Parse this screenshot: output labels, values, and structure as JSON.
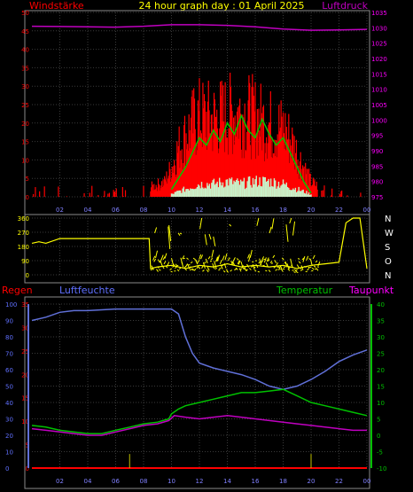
{
  "header": {
    "left_label": "Windstärke",
    "center_title": "24 hour graph day : 01 April 2025",
    "right_label": "Luftdruck"
  },
  "colors": {
    "bg": "#000000",
    "panel_border": "#8a8a8a",
    "grid": "#3a3a3a",
    "wind_gust": "#ff0000",
    "wind_avg": "#00c800",
    "wind_min": "#c8f0c8",
    "pressure": "#c000c0",
    "direction": "#ffff00",
    "humidity": "#6070d8",
    "temperature": "#00c000",
    "dewpoint": "#c000c0",
    "rain": "#ff0000",
    "wind_axis": "#ff0000",
    "pressure_axis": "#ff00ff",
    "humidity_axis": "#6070ff",
    "temp_axis": "#00c000",
    "rain_axis": "#ff0000",
    "time_axis": "#8080ff",
    "white": "#ffffff"
  },
  "time_ticks": [
    "02",
    "04",
    "06",
    "08",
    "10",
    "12",
    "14",
    "16",
    "18",
    "20",
    "22",
    "00"
  ],
  "chart_data": [
    {
      "type": "line",
      "name": "wind_and_pressure",
      "x_range": [
        0,
        24
      ],
      "wind_axis": {
        "ticks": [
          "0",
          "5",
          "10",
          "15",
          "20",
          "25",
          "30",
          "35",
          "40",
          "45",
          "50"
        ],
        "ylim": [
          0,
          50
        ]
      },
      "pressure_axis": {
        "ticks": [
          "975",
          "980",
          "985",
          "990",
          "995",
          "1000",
          "1005",
          "1010",
          "1015",
          "1020",
          "1025",
          "1030",
          "1035"
        ],
        "ylim": [
          975,
          1035
        ]
      },
      "pressure": {
        "x": [
          0,
          2,
          4,
          6,
          8,
          10,
          12,
          14,
          16,
          18,
          20,
          22,
          24
        ],
        "y": [
          1030.5,
          1030.4,
          1030.3,
          1030.2,
          1030.5,
          1031.0,
          1031.0,
          1030.8,
          1030.3,
          1029.6,
          1029.2,
          1029.3,
          1029.5
        ]
      },
      "wind_avg": {
        "x": [
          10,
          10.5,
          11,
          11.5,
          12,
          12.5,
          13,
          13.5,
          14,
          14.5,
          15,
          15.5,
          16,
          16.5,
          17,
          17.5,
          18,
          18.5,
          19,
          19.5,
          20
        ],
        "y": [
          2,
          5,
          8,
          12,
          16,
          14,
          18,
          15,
          20,
          17,
          22,
          18,
          16,
          21,
          17,
          14,
          16,
          12,
          8,
          4,
          1
        ]
      },
      "wind_gust_envelope": {
        "x": [
          0,
          8,
          9.5,
          10,
          10.5,
          11,
          11.5,
          12,
          13,
          14,
          15,
          16,
          17,
          18,
          18.5,
          19,
          19.5,
          20,
          21,
          22,
          23,
          24
        ],
        "y": [
          3,
          3,
          6,
          12,
          20,
          25,
          30,
          33,
          32,
          34,
          35,
          33,
          30,
          28,
          24,
          18,
          12,
          6,
          3,
          3,
          3,
          4
        ]
      },
      "wind_min_envelope": {
        "x": [
          10,
          11,
          12,
          13,
          14,
          15,
          16,
          17,
          18,
          19,
          20
        ],
        "y": [
          1,
          3,
          5,
          5,
          6,
          5,
          6,
          6,
          5,
          3,
          1
        ]
      }
    },
    {
      "type": "line",
      "name": "wind_direction",
      "x_range": [
        0,
        24
      ],
      "ticks_left": [
        "360",
        "270",
        "180",
        "90",
        "0"
      ],
      "ticks_right": [
        "N",
        "W",
        "S",
        "O",
        "N"
      ],
      "ylim": [
        0,
        360
      ],
      "direction": {
        "x": [
          0,
          0.5,
          1,
          2,
          4,
          6,
          7,
          8.4,
          8.5,
          9,
          10,
          11,
          12,
          13,
          14,
          15,
          16,
          17,
          18,
          19,
          20,
          21,
          22,
          22.5,
          23,
          23.5,
          24
        ],
        "y": [
          200,
          210,
          200,
          230,
          230,
          230,
          230,
          230,
          40,
          50,
          60,
          40,
          60,
          50,
          70,
          50,
          60,
          50,
          60,
          40,
          60,
          70,
          80,
          330,
          360,
          360,
          40
        ]
      }
    },
    {
      "type": "line",
      "name": "humidity_temperature_dewpoint_rain",
      "x_range": [
        0,
        24
      ],
      "left_labels": {
        "rain": "Regen",
        "humidity": "Luftfeuchte"
      },
      "right_labels": {
        "temperature": "Temperatur",
        "dewpoint": "Taupunkt"
      },
      "humidity_axis": {
        "ticks": [
          "0",
          "10",
          "20",
          "30",
          "40",
          "50",
          "60",
          "70",
          "80",
          "90",
          "100"
        ],
        "ylim": [
          0,
          100
        ]
      },
      "rain_axis": {
        "ticks": [
          "0",
          "5",
          "10",
          "15",
          "20",
          "25",
          "30",
          "35"
        ],
        "ylim": [
          0,
          35
        ]
      },
      "temp_axis": {
        "ticks": [
          "-10",
          "-5",
          "0",
          "5",
          "10",
          "15",
          "20",
          "25",
          "30",
          "35",
          "40"
        ],
        "ylim": [
          -10,
          40
        ]
      },
      "humidity": {
        "x": [
          0,
          1,
          2,
          3,
          4,
          6,
          8,
          9.5,
          10,
          10.5,
          11,
          11.5,
          12,
          13,
          14,
          15,
          16,
          17,
          18,
          19,
          20,
          21,
          22,
          23,
          24
        ],
        "y": [
          90,
          92,
          95,
          96,
          96,
          97,
          97,
          97,
          97,
          94,
          80,
          70,
          64,
          61,
          59,
          57,
          54,
          50,
          48,
          50,
          54,
          59,
          65,
          69,
          72
        ]
      },
      "temperature": {
        "x": [
          0,
          1,
          2,
          3,
          4,
          5,
          6,
          7,
          8,
          9,
          9.8,
          10,
          10.5,
          11,
          12,
          13,
          14,
          15,
          16,
          17,
          18,
          19,
          20,
          21,
          22,
          23,
          24
        ],
        "y": [
          3,
          2.5,
          1.5,
          1,
          0.5,
          0.5,
          1.5,
          2.5,
          3.5,
          4,
          5,
          6.5,
          8,
          9,
          10,
          11,
          12,
          13,
          13,
          13.5,
          14,
          12,
          10,
          9,
          8,
          7,
          6
        ]
      },
      "dewpoint": {
        "x": [
          0,
          1,
          2,
          3,
          4,
          5,
          6,
          7,
          8,
          9,
          9.8,
          10.2,
          11,
          12,
          13,
          14,
          15,
          16,
          17,
          18,
          19,
          20,
          21,
          22,
          23,
          24
        ],
        "y": [
          2,
          1.5,
          1,
          0.5,
          0,
          0,
          1,
          2,
          3,
          3.5,
          4.5,
          6,
          5.5,
          5,
          5.5,
          6,
          5.5,
          5,
          4.5,
          4,
          3.5,
          3,
          2.5,
          2,
          1.5,
          1.5
        ]
      },
      "rain": {
        "x": [
          7,
          20
        ],
        "y": [
          3,
          3
        ]
      }
    }
  ]
}
